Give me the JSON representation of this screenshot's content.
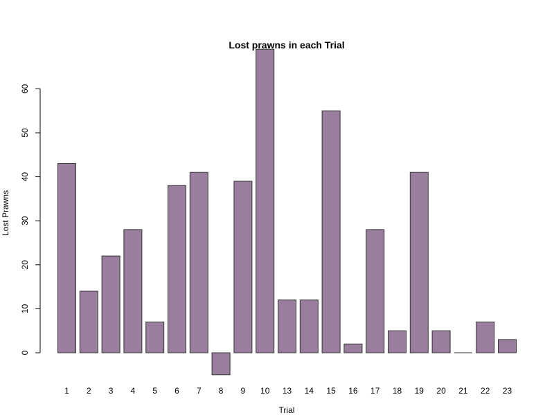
{
  "chart_data": {
    "type": "bar",
    "title": "Lost prawns in each Trial",
    "xlabel": "Trial",
    "ylabel": "Lost Prawns",
    "categories": [
      "1",
      "2",
      "3",
      "4",
      "5",
      "6",
      "7",
      "8",
      "9",
      "10",
      "13",
      "14",
      "15",
      "16",
      "17",
      "18",
      "19",
      "20",
      "21",
      "22",
      "23"
    ],
    "values": [
      43,
      14,
      22,
      28,
      7,
      38,
      41,
      -5,
      39,
      69,
      12,
      12,
      55,
      2,
      28,
      5,
      41,
      5,
      0,
      7,
      3
    ],
    "yticks": [
      0,
      10,
      20,
      30,
      40,
      50,
      60
    ],
    "ylim": [
      -5,
      69
    ],
    "grid": false,
    "legend": "none",
    "bar_color": "#9a7e9e",
    "bar_edge_color": "#333333"
  }
}
